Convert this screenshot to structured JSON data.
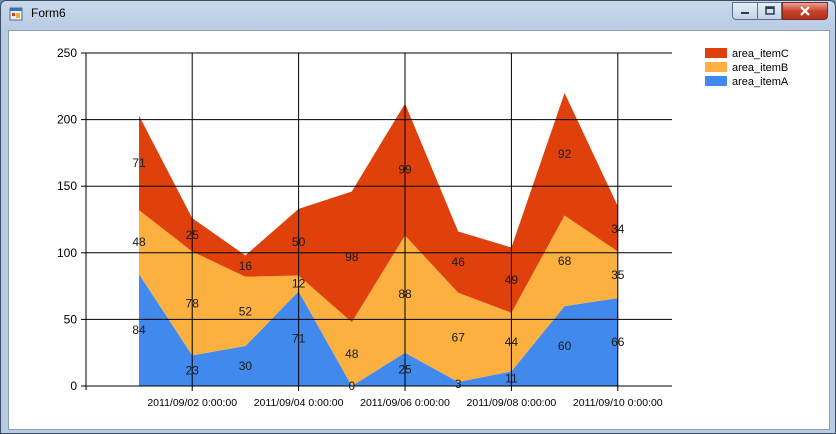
{
  "window": {
    "title": "Form6"
  },
  "chart_data": {
    "type": "area",
    "stacked": true,
    "categories": [
      "2011/09/01",
      "2011/09/02",
      "2011/09/03",
      "2011/09/04",
      "2011/09/05",
      "2011/09/06",
      "2011/09/07",
      "2011/09/08",
      "2011/09/09",
      "2011/09/10"
    ],
    "x_tick_labels": [
      "2011/09/02 0:00:00",
      "2011/09/04 0:00:00",
      "2011/09/06 0:00:00",
      "2011/09/08 0:00:00",
      "2011/09/10 0:00:00"
    ],
    "series": [
      {
        "name": "area_itemA",
        "color": "#4289ee",
        "values": [
          84,
          23,
          30,
          71,
          0,
          25,
          3,
          11,
          60,
          66
        ]
      },
      {
        "name": "area_itemB",
        "color": "#fbb040",
        "values": [
          48,
          78,
          52,
          12,
          48,
          88,
          67,
          44,
          68,
          35
        ]
      },
      {
        "name": "area_itemC",
        "color": "#e0410c",
        "values": [
          71,
          25,
          16,
          50,
          98,
          99,
          46,
          49,
          92,
          34
        ]
      }
    ],
    "ylim": [
      0,
      250
    ],
    "yticks": [
      0,
      50,
      100,
      150,
      200,
      250
    ],
    "grid": true,
    "legend_position": "top-right",
    "legend_order": [
      "area_itemC",
      "area_itemB",
      "area_itemA"
    ]
  }
}
